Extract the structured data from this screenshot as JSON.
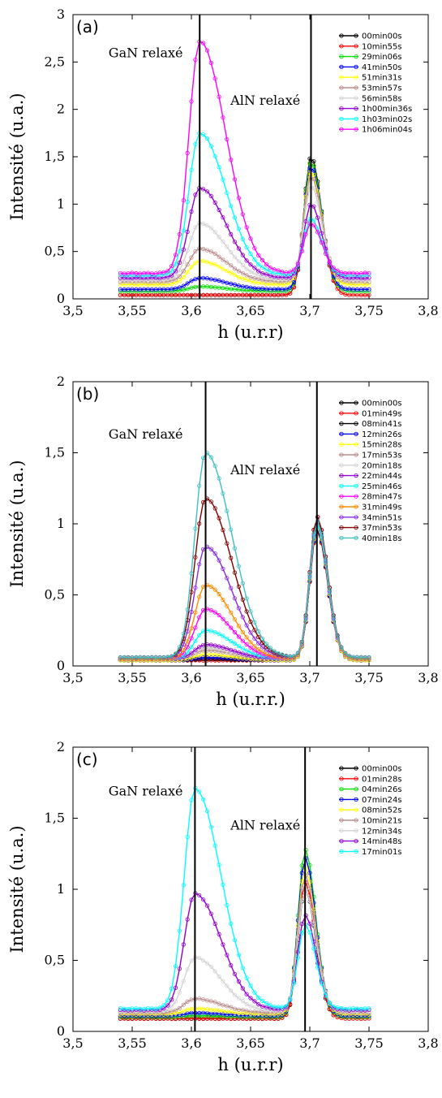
{
  "chart_data": [
    {
      "type": "line",
      "panel_label": "(a)",
      "xlabel": "h (u.r.r)",
      "ylabel": "Intensité (u.a.)",
      "xlim": [
        3.5,
        3.8
      ],
      "ylim": [
        0,
        3
      ],
      "xticks": [
        3.5,
        3.55,
        3.6,
        3.65,
        3.7,
        3.75,
        3.8
      ],
      "xtick_labels": [
        "3,5",
        "3,55",
        "3,6",
        "3,65",
        "3,7",
        "3,75",
        "3,8"
      ],
      "yticks": [
        0,
        0.5,
        1,
        1.5,
        2,
        2.5,
        3
      ],
      "ytick_labels": [
        "0",
        "0,5",
        "1",
        "1,5",
        "2",
        "2,5",
        "3"
      ],
      "grid": false,
      "legend_position": "top-right",
      "vlines": [
        3.607,
        3.701
      ],
      "annotations": [
        {
          "text": "GaN relaxé",
          "x": 3.53,
          "y": 2.55
        },
        {
          "text": "AlN relaxé",
          "x": 3.633,
          "y": 2.05
        }
      ],
      "series": [
        {
          "name": "00min00s",
          "color": "#000000",
          "peak_gan": 0.0,
          "peak_aln": 1.5,
          "base": 0.04
        },
        {
          "name": "10min55s",
          "color": "#ff0000",
          "peak_gan": 0.0,
          "peak_aln": 1.45,
          "base": 0.04
        },
        {
          "name": "29min06s",
          "color": "#00dd00",
          "peak_gan": 0.05,
          "peak_aln": 1.45,
          "base": 0.08
        },
        {
          "name": "41min50s",
          "color": "#0000ff",
          "peak_gan": 0.12,
          "peak_aln": 1.4,
          "base": 0.1
        },
        {
          "name": "51min31s",
          "color": "#ffff00",
          "peak_gan": 0.25,
          "peak_aln": 1.35,
          "base": 0.15
        },
        {
          "name": "53min57s",
          "color": "#bc8f8f",
          "peak_gan": 0.35,
          "peak_aln": 1.3,
          "base": 0.18
        },
        {
          "name": "56min58s",
          "color": "#d3d3d3",
          "peak_gan": 0.6,
          "peak_aln": 1.2,
          "base": 0.2
        },
        {
          "name": "1h00min36s",
          "color": "#9400d3",
          "peak_gan": 0.95,
          "peak_aln": 1.0,
          "base": 0.22
        },
        {
          "name": "1h03min02s",
          "color": "#00ffff",
          "peak_gan": 1.5,
          "peak_aln": 0.85,
          "base": 0.25
        },
        {
          "name": "1h06min04s",
          "color": "#ff00ff",
          "peak_gan": 2.45,
          "peak_aln": 0.8,
          "base": 0.27
        }
      ]
    },
    {
      "type": "line",
      "panel_label": "(b)",
      "xlabel": "h (u.r.r.)",
      "ylabel": "Intensité (u.a.)",
      "xlim": [
        3.5,
        3.8
      ],
      "ylim": [
        0,
        2
      ],
      "xticks": [
        3.5,
        3.55,
        3.6,
        3.65,
        3.7,
        3.75,
        3.8
      ],
      "xtick_labels": [
        "3,5",
        "3,55",
        "3,6",
        "3,65",
        "3,7",
        "3,75",
        "3,8"
      ],
      "yticks": [
        0,
        0.5,
        1,
        1.5,
        2
      ],
      "ytick_labels": [
        "0",
        "0,5",
        "1",
        "1,5",
        "2"
      ],
      "grid": false,
      "legend_position": "top-right",
      "vlines": [
        3.612,
        3.706
      ],
      "annotations": [
        {
          "text": "GaN relaxé",
          "x": 3.53,
          "y": 1.6
        },
        {
          "text": "AlN relaxé",
          "x": 3.633,
          "y": 1.35
        }
      ],
      "series": [
        {
          "name": "00min00s",
          "color": "#000000",
          "peak_gan": 0.0,
          "peak_aln": 0.95,
          "base": 0.04
        },
        {
          "name": "01min49s",
          "color": "#ff0000",
          "peak_gan": 0.0,
          "peak_aln": 0.95,
          "base": 0.04
        },
        {
          "name": "08min41s",
          "color": "#000000",
          "peak_gan": 0.01,
          "peak_aln": 0.96,
          "base": 0.04
        },
        {
          "name": "12min26s",
          "color": "#0000ff",
          "peak_gan": 0.02,
          "peak_aln": 0.97,
          "base": 0.04
        },
        {
          "name": "15min28s",
          "color": "#ffff00",
          "peak_gan": 0.04,
          "peak_aln": 0.98,
          "base": 0.04
        },
        {
          "name": "17min53s",
          "color": "#bc8f8f",
          "peak_gan": 0.06,
          "peak_aln": 0.99,
          "base": 0.05
        },
        {
          "name": "20min18s",
          "color": "#d3d3d3",
          "peak_gan": 0.08,
          "peak_aln": 1.0,
          "base": 0.05
        },
        {
          "name": "22min44s",
          "color": "#9400d3",
          "peak_gan": 0.1,
          "peak_aln": 1.0,
          "base": 0.05
        },
        {
          "name": "25min46s",
          "color": "#00ffff",
          "peak_gan": 0.2,
          "peak_aln": 1.0,
          "base": 0.05
        },
        {
          "name": "28min47s",
          "color": "#ff00ff",
          "peak_gan": 0.35,
          "peak_aln": 1.02,
          "base": 0.05
        },
        {
          "name": "31min49s",
          "color": "#ff8c00",
          "peak_gan": 0.52,
          "peak_aln": 1.05,
          "base": 0.05
        },
        {
          "name": "34min51s",
          "color": "#8a2be2",
          "peak_gan": 0.78,
          "peak_aln": 1.05,
          "base": 0.06
        },
        {
          "name": "37min53s",
          "color": "#800000",
          "peak_gan": 1.12,
          "peak_aln": 1.05,
          "base": 0.06
        },
        {
          "name": "40min18s",
          "color": "#40c0c0",
          "peak_gan": 1.44,
          "peak_aln": 1.02,
          "base": 0.06
        }
      ]
    },
    {
      "type": "line",
      "panel_label": "(c)",
      "xlabel": "h (u.r.r)",
      "ylabel": "Intensité (u.a.)",
      "xlim": [
        3.5,
        3.8
      ],
      "ylim": [
        0,
        2
      ],
      "xticks": [
        3.5,
        3.55,
        3.6,
        3.65,
        3.7,
        3.75,
        3.8
      ],
      "xtick_labels": [
        "3,5",
        "3,55",
        "3,6",
        "3,65",
        "3,7",
        "3,75",
        "3,8"
      ],
      "yticks": [
        0,
        0.5,
        1,
        1.5,
        2
      ],
      "ytick_labels": [
        "0",
        "0,5",
        "1",
        "1,5",
        "2"
      ],
      "grid": false,
      "legend_position": "top-right",
      "vlines": [
        3.603,
        3.696
      ],
      "annotations": [
        {
          "text": "GaN relaxé",
          "x": 3.53,
          "y": 1.66
        },
        {
          "text": "AlN relaxé",
          "x": 3.633,
          "y": 1.42
        }
      ],
      "series": [
        {
          "name": "00min00s",
          "color": "#000000",
          "peak_gan": 0.0,
          "peak_aln": 1.0,
          "base": 0.09
        },
        {
          "name": "01min28s",
          "color": "#ff0000",
          "peak_gan": 0.0,
          "peak_aln": 1.05,
          "base": 0.09
        },
        {
          "name": "04min26s",
          "color": "#00dd00",
          "peak_gan": 0.01,
          "peak_aln": 1.28,
          "base": 0.1
        },
        {
          "name": "07min24s",
          "color": "#0000ff",
          "peak_gan": 0.02,
          "peak_aln": 1.22,
          "base": 0.11
        },
        {
          "name": "08min52s",
          "color": "#ffff00",
          "peak_gan": 0.04,
          "peak_aln": 1.15,
          "base": 0.12
        },
        {
          "name": "10min21s",
          "color": "#bc8f8f",
          "peak_gan": 0.1,
          "peak_aln": 1.1,
          "base": 0.13
        },
        {
          "name": "12min34s",
          "color": "#d3d3d3",
          "peak_gan": 0.38,
          "peak_aln": 1.0,
          "base": 0.14
        },
        {
          "name": "14min48s",
          "color": "#9400d3",
          "peak_gan": 0.82,
          "peak_aln": 0.82,
          "base": 0.15
        },
        {
          "name": "17min01s",
          "color": "#00ffff",
          "peak_gan": 1.55,
          "peak_aln": 0.75,
          "base": 0.16
        }
      ]
    }
  ]
}
